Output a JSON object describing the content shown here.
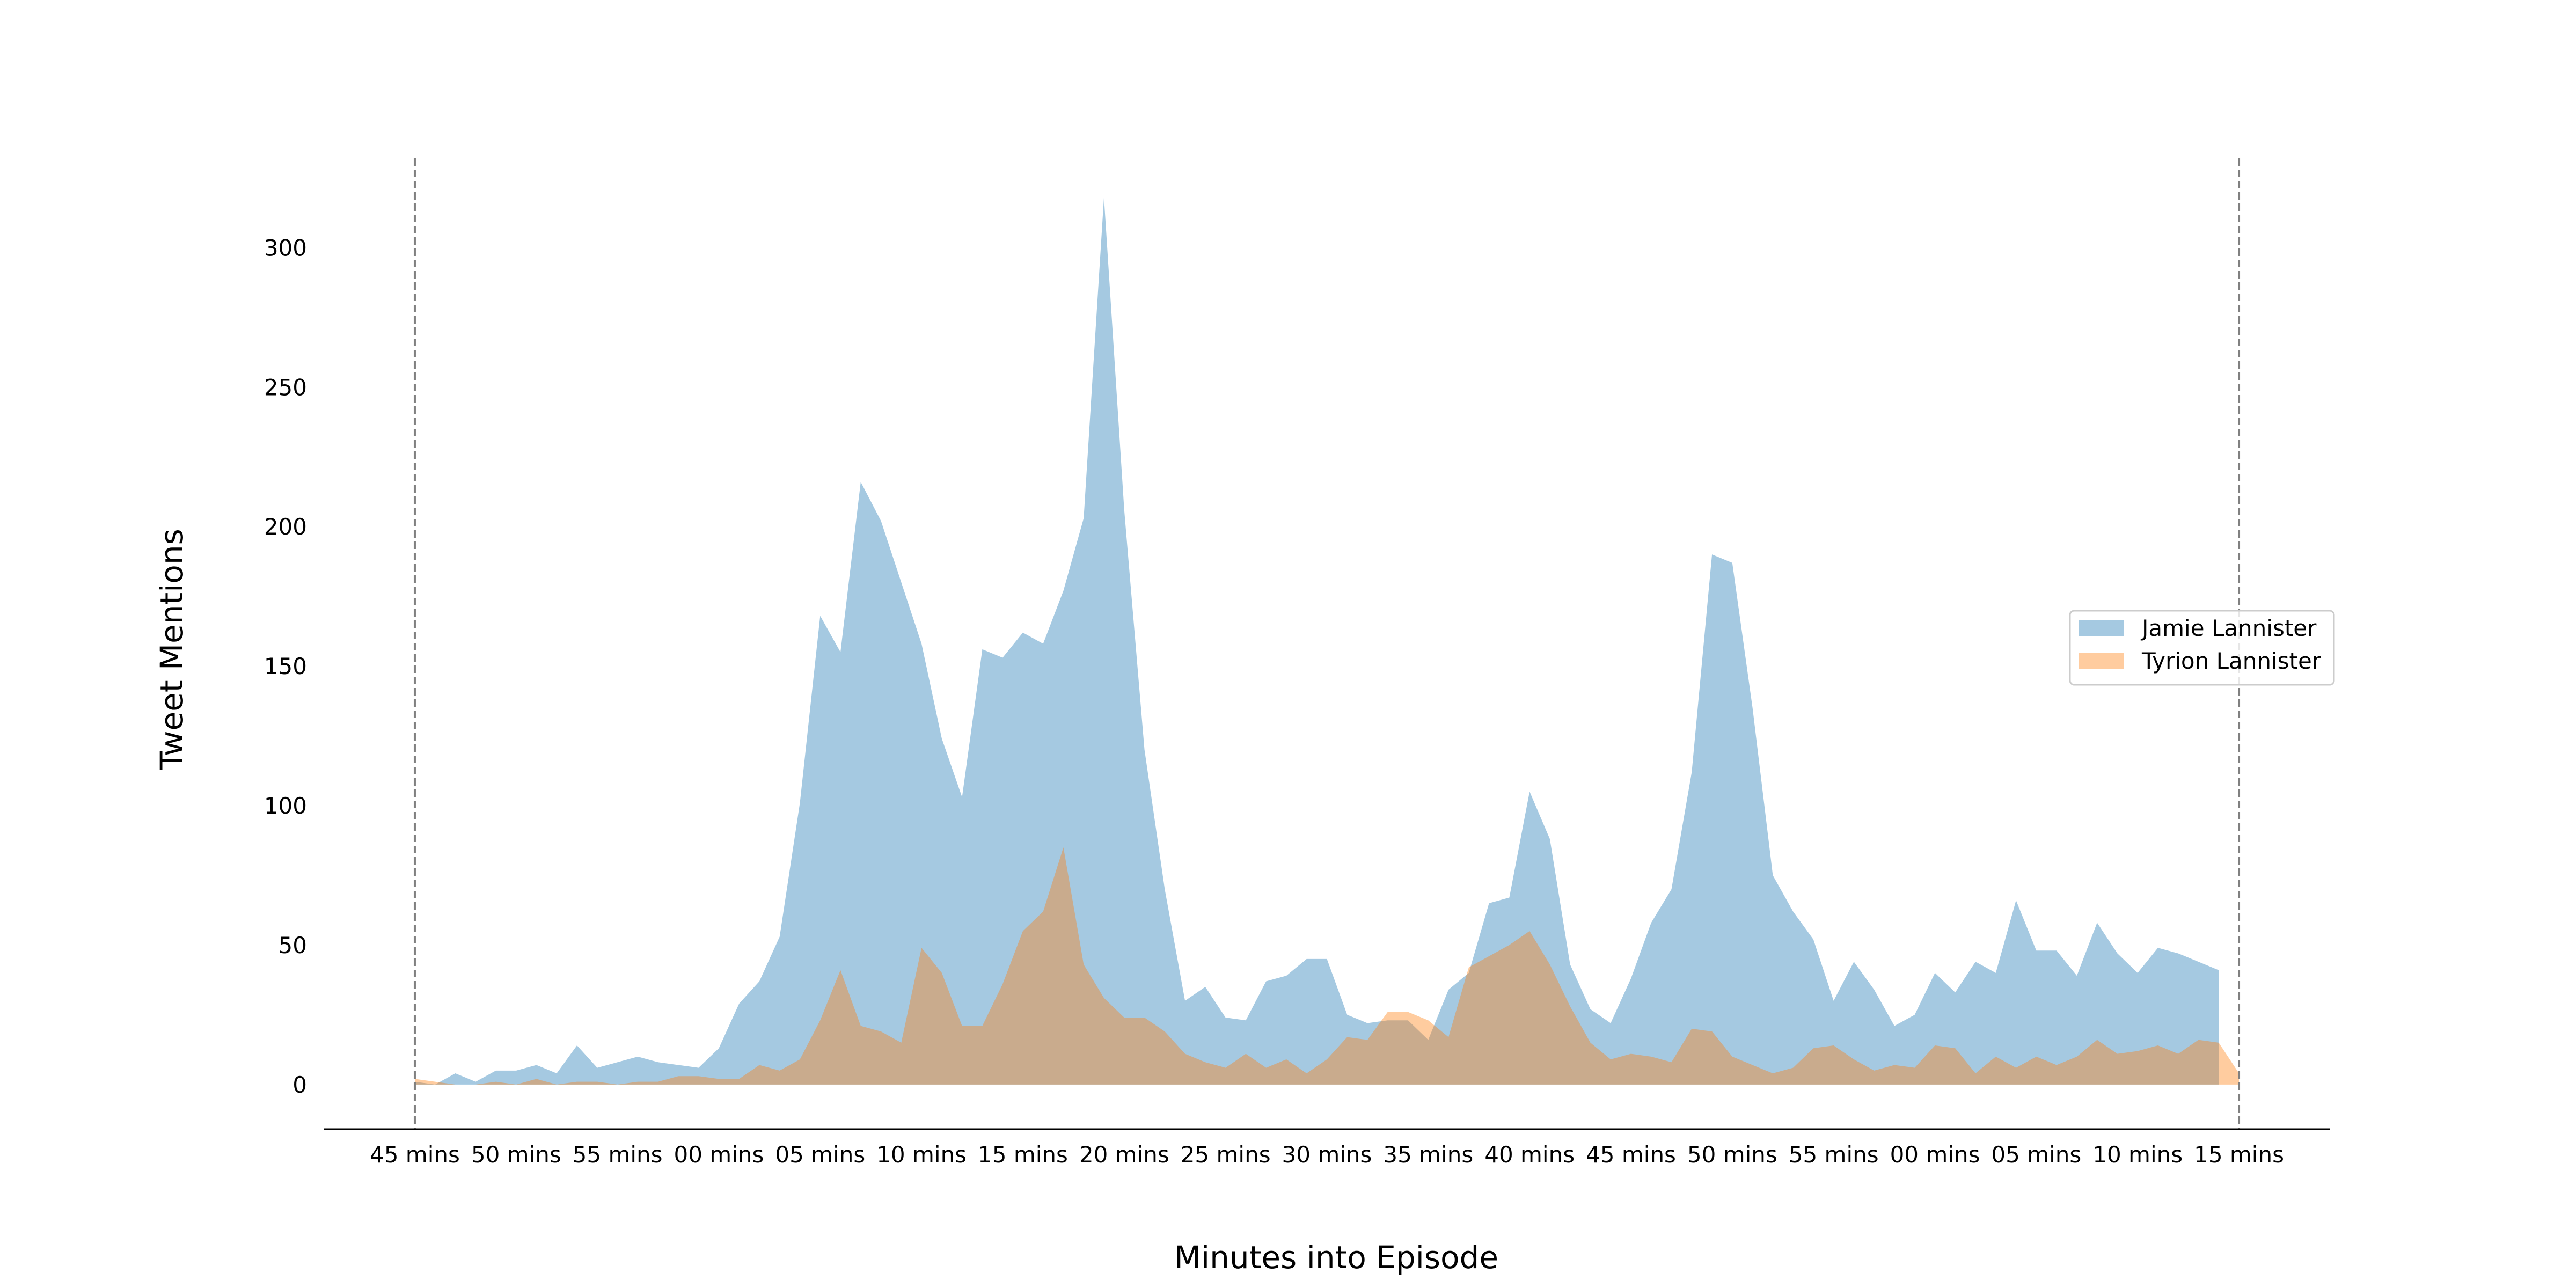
{
  "chart_data": {
    "type": "area",
    "title": "",
    "xlabel": "Minutes into Episode",
    "ylabel": "Tweet Mentions",
    "xlim": [
      -4.5,
      94.5
    ],
    "ylim": [
      -16,
      332
    ],
    "yticks": [
      0,
      50,
      100,
      150,
      200,
      250,
      300
    ],
    "xticks": [
      {
        "x": 0,
        "label": "45 mins"
      },
      {
        "x": 5,
        "label": "50 mins"
      },
      {
        "x": 10,
        "label": "55 mins"
      },
      {
        "x": 15,
        "label": "00 mins"
      },
      {
        "x": 20,
        "label": "05 mins"
      },
      {
        "x": 25,
        "label": "10 mins"
      },
      {
        "x": 30,
        "label": "15 mins"
      },
      {
        "x": 35,
        "label": "20 mins"
      },
      {
        "x": 40,
        "label": "25 mins"
      },
      {
        "x": 45,
        "label": "30 mins"
      },
      {
        "x": 50,
        "label": "35 mins"
      },
      {
        "x": 55,
        "label": "40 mins"
      },
      {
        "x": 60,
        "label": "45 mins"
      },
      {
        "x": 65,
        "label": "50 mins"
      },
      {
        "x": 70,
        "label": "55 mins"
      },
      {
        "x": 75,
        "label": "00 mins"
      },
      {
        "x": 80,
        "label": "05 mins"
      },
      {
        "x": 85,
        "label": "10 mins"
      },
      {
        "x": 90,
        "label": "15 mins"
      }
    ],
    "vlines": [
      0,
      90
    ],
    "legend_position": "center-right",
    "grid": false,
    "series": [
      {
        "name": "Jamie Lannister",
        "color": "#1f77b4",
        "alpha": 0.4,
        "values": [
          1,
          0,
          4,
          1,
          5,
          5,
          7,
          4,
          14,
          6,
          8,
          10,
          8,
          7,
          6,
          13,
          29,
          37,
          53,
          101,
          168,
          155,
          216,
          202,
          180,
          158,
          124,
          103,
          156,
          153,
          162,
          158,
          177,
          203,
          318,
          206,
          120,
          70,
          30,
          35,
          24,
          23,
          37,
          39,
          45,
          45,
          25,
          22,
          23,
          23,
          16,
          34,
          40,
          65,
          67,
          105,
          88,
          43,
          27,
          22,
          38,
          58,
          70,
          112,
          190,
          187,
          135,
          75,
          62,
          52,
          30,
          44,
          34,
          21,
          25,
          40,
          33,
          44,
          40,
          66,
          48,
          48,
          39,
          58,
          47,
          40,
          49,
          47,
          44,
          41
        ]
      },
      {
        "name": "Tyrion Lannister",
        "color": "#ff7f0e",
        "alpha": 0.4,
        "values": [
          2,
          1,
          0,
          0,
          1,
          0,
          2,
          0,
          1,
          1,
          0,
          1,
          1,
          3,
          3,
          2,
          2,
          7,
          5,
          9,
          23,
          41,
          21,
          19,
          15,
          49,
          40,
          21,
          21,
          36,
          55,
          62,
          85,
          43,
          31,
          24,
          24,
          19,
          11,
          8,
          6,
          11,
          6,
          9,
          4,
          9,
          17,
          16,
          26,
          26,
          23,
          17,
          42,
          46,
          50,
          55,
          43,
          28,
          15,
          9,
          11,
          10,
          8,
          20,
          19,
          10,
          7,
          4,
          6,
          13,
          14,
          9,
          5,
          7,
          6,
          14,
          13,
          4,
          10,
          6,
          10,
          7,
          10,
          16,
          11,
          12,
          14,
          11,
          16,
          15,
          4
        ]
      }
    ]
  }
}
